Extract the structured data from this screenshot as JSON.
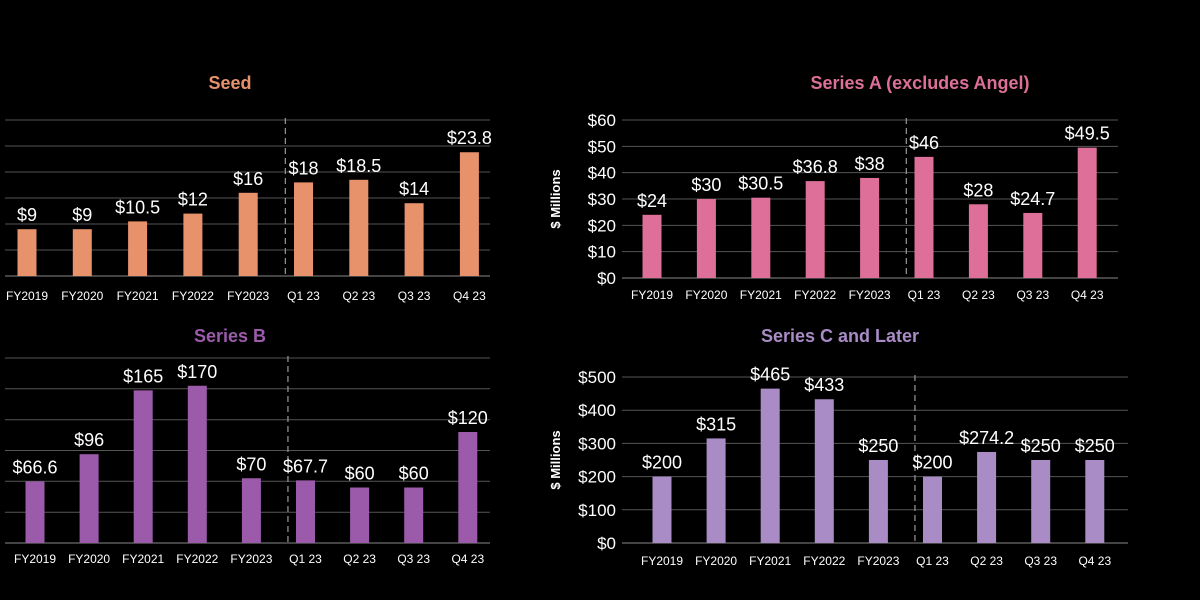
{
  "chart_data": [
    {
      "type": "bar",
      "title": "Seed",
      "ylabel": "",
      "color": "#E8926C",
      "title_color": "#E8926C",
      "categories": [
        "FY2019",
        "FY2020",
        "FY2021",
        "FY2022",
        "FY2023",
        "Q1 23",
        "Q2 23",
        "Q3 23",
        "Q4 23"
      ],
      "values": [
        9,
        9,
        10.5,
        12,
        16,
        18,
        18.5,
        14,
        23.8
      ],
      "labels": [
        "$9",
        "$9",
        "$10.5",
        "$12",
        "$16",
        "$18",
        "$18.5",
        "$14",
        "$23.8"
      ],
      "ylim": [
        0,
        30
      ],
      "yticks": [
        0,
        5,
        10,
        15,
        20,
        25,
        30
      ],
      "ytick_labels": [],
      "grid": true,
      "divider_after_index": 4
    },
    {
      "type": "bar",
      "title": "Series A (excludes Angel)",
      "ylabel": "$ Millions",
      "color": "#DD6F98",
      "title_color": "#DD6F98",
      "categories": [
        "FY2019",
        "FY2020",
        "FY2021",
        "FY2022",
        "FY2023",
        "Q1 23",
        "Q2 23",
        "Q3 23",
        "Q4 23"
      ],
      "values": [
        24,
        30,
        30.5,
        36.8,
        38,
        46,
        28,
        24.7,
        49.5
      ],
      "labels": [
        "$24",
        "$30",
        "$30.5",
        "$36.8",
        "$38",
        "$46",
        "$28",
        "$24.7",
        "$49.5"
      ],
      "ylim": [
        0,
        60
      ],
      "yticks": [
        0,
        10,
        20,
        30,
        40,
        50,
        60
      ],
      "ytick_labels": [
        "$0",
        "$10",
        "$20",
        "$30",
        "$40",
        "$50",
        "$60"
      ],
      "grid": true,
      "divider_after_index": 4
    },
    {
      "type": "bar",
      "title": "Series B",
      "ylabel": "",
      "color": "#9B5BAA",
      "title_color": "#9B5BAA",
      "categories": [
        "FY2019",
        "FY2020",
        "FY2021",
        "FY2022",
        "FY2023",
        "Q1 23",
        "Q2 23",
        "Q3 23",
        "Q4 23"
      ],
      "values": [
        66.6,
        96,
        165,
        170,
        70,
        67.7,
        60,
        60,
        120
      ],
      "labels": [
        "$66.6",
        "$96",
        "$165",
        "$170",
        "$70",
        "$67.7",
        "$60",
        "$60",
        "$120"
      ],
      "ylim": [
        0,
        200
      ],
      "yticks": [
        0,
        33.3,
        66.7,
        100,
        133.3,
        166.7,
        200
      ],
      "ytick_labels": [],
      "grid": true,
      "divider_after_index": 4
    },
    {
      "type": "bar",
      "title": "Series C and Later",
      "ylabel": "$ Millions",
      "color": "#A98BC6",
      "title_color": "#A98BC6",
      "categories": [
        "FY2019",
        "FY2020",
        "FY2021",
        "FY2022",
        "FY2023",
        "Q1 23",
        "Q2 23",
        "Q3 23",
        "Q4 23"
      ],
      "values": [
        200,
        315,
        465,
        433,
        250,
        200,
        274.2,
        250,
        250
      ],
      "labels": [
        "$200",
        "$315",
        "$465",
        "$433",
        "$250",
        "$200",
        "$274.2",
        "$250",
        "$250"
      ],
      "ylim": [
        0,
        500
      ],
      "yticks": [
        0,
        100,
        200,
        300,
        400,
        500
      ],
      "ytick_labels": [
        "$0",
        "$100",
        "$200",
        "$300",
        "$400",
        "$500"
      ],
      "grid": true,
      "divider_after_index": 4
    }
  ]
}
